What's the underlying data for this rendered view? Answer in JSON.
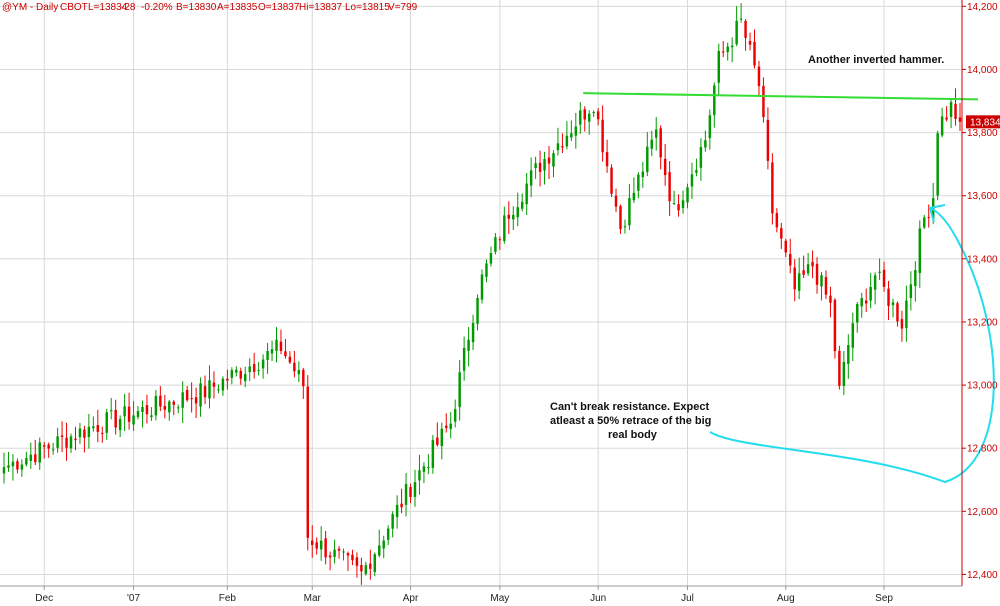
{
  "header": {
    "symbol": "@YM - Daily",
    "exchange": "CBOT",
    "last": "L=13834",
    "change": "-28",
    "pct": "-0.20%",
    "bid": "B=13830",
    "ask": "A=13835",
    "open": "O=13837",
    "high": "Hi=13837",
    "low": "Lo=13815",
    "volume": "V=799"
  },
  "annotations": {
    "top": "Another inverted hammer.",
    "mid_line1": "Can't break resistance. Expect",
    "mid_line2": "atleast a 50% retrace of the big",
    "mid_line3": "real body"
  },
  "colors": {
    "up": "#009900",
    "down": "#ee0000",
    "grid": "#d8d8d8",
    "resistance": "#33dd33",
    "arrow": "#22ddee",
    "axis_text": "#cc0000",
    "last_box": "#cc0000"
  },
  "chart_data": {
    "type": "candlestick",
    "title": "",
    "ylim": [
      12300,
      14220
    ],
    "yticks": [
      12400,
      12600,
      12800,
      13000,
      13200,
      13400,
      13600,
      13800,
      14000,
      14200
    ],
    "ytick_labels": [
      "12,400",
      "12,600",
      "12,800",
      "13,000",
      "13,200",
      "13,400",
      "13,600",
      "13,800",
      "14,000",
      "14,200"
    ],
    "xticks": [
      {
        "label": "Dec",
        "index": 9
      },
      {
        "label": "'07",
        "index": 29
      },
      {
        "label": "Feb",
        "index": 50
      },
      {
        "label": "Mar",
        "index": 69
      },
      {
        "label": "Apr",
        "index": 91
      },
      {
        "label": "May",
        "index": 111
      },
      {
        "label": "Jun",
        "index": 133
      },
      {
        "label": "Jul",
        "index": 153
      },
      {
        "label": "Aug",
        "index": 175
      },
      {
        "label": "Sep",
        "index": 197
      }
    ],
    "last_value": 13834,
    "last_label": "13,834",
    "resistance": {
      "from_index": 131,
      "to_index": 214,
      "start_price": 13925,
      "end_price": 13905
    },
    "key_points": [
      {
        "index": 0,
        "close": 12740
      },
      {
        "index": 20,
        "close": 12870
      },
      {
        "index": 45,
        "close": 12980
      },
      {
        "index": 62,
        "close": 13120
      },
      {
        "index": 67,
        "close": 13000
      },
      {
        "index": 68,
        "close": 12520
      },
      {
        "index": 80,
        "close": 12400
      },
      {
        "index": 91,
        "close": 12680
      },
      {
        "index": 100,
        "close": 12880
      },
      {
        "index": 106,
        "close": 13300
      },
      {
        "index": 113,
        "close": 13550
      },
      {
        "index": 120,
        "close": 13700
      },
      {
        "index": 132,
        "close": 13900
      },
      {
        "index": 138,
        "close": 13500
      },
      {
        "index": 146,
        "close": 13800
      },
      {
        "index": 150,
        "close": 13550
      },
      {
        "index": 157,
        "close": 13780
      },
      {
        "index": 160,
        "close": 14030
      },
      {
        "index": 165,
        "close": 14150
      },
      {
        "index": 169,
        "close": 13950
      },
      {
        "index": 172,
        "close": 13550
      },
      {
        "index": 177,
        "close": 13300
      },
      {
        "index": 181,
        "close": 13380
      },
      {
        "index": 185,
        "close": 13250
      },
      {
        "index": 187,
        "close": 12980
      },
      {
        "index": 190,
        "close": 13200
      },
      {
        "index": 195,
        "close": 13350
      },
      {
        "index": 201,
        "close": 13200
      },
      {
        "index": 206,
        "close": 13530
      },
      {
        "index": 208,
        "close": 13600
      },
      {
        "index": 209,
        "close": 13820
      },
      {
        "index": 212,
        "close": 13880
      },
      {
        "index": 214,
        "close": 13834
      }
    ]
  }
}
